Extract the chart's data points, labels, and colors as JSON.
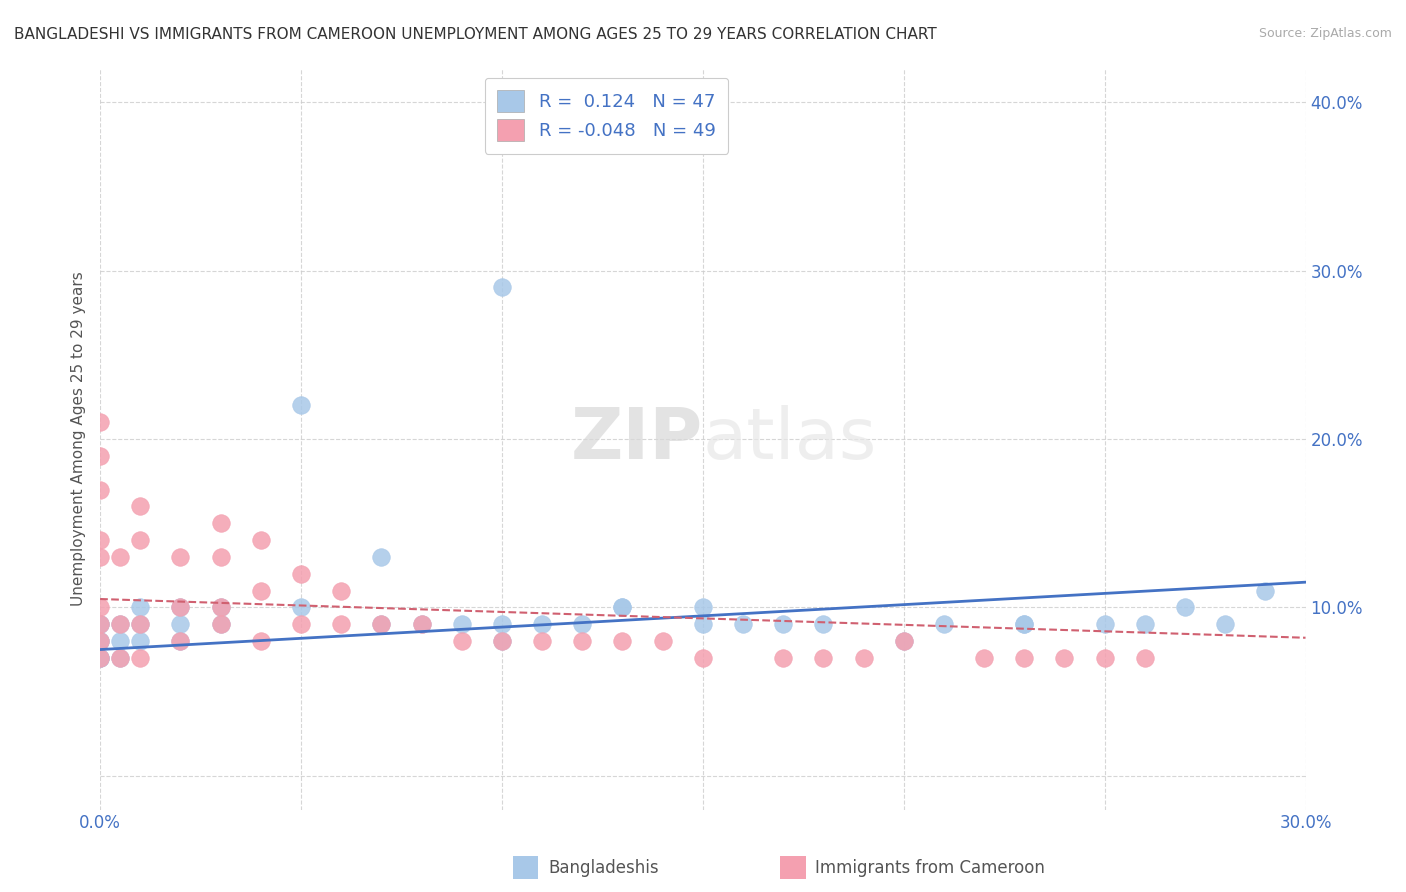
{
  "title": "BANGLADESHI VS IMMIGRANTS FROM CAMEROON UNEMPLOYMENT AMONG AGES 25 TO 29 YEARS CORRELATION CHART",
  "source": "Source: ZipAtlas.com",
  "ylabel": "Unemployment Among Ages 25 to 29 years",
  "xlim": [
    0.0,
    0.3
  ],
  "ylim": [
    -0.02,
    0.42
  ],
  "y_ticks": [
    0.0,
    0.1,
    0.2,
    0.3,
    0.4
  ],
  "y_tick_labels": [
    "",
    "10.0%",
    "20.0%",
    "30.0%",
    "40.0%"
  ],
  "x_ticks": [
    0.0,
    0.05,
    0.1,
    0.15,
    0.2,
    0.25,
    0.3
  ],
  "x_tick_labels": [
    "0.0%",
    "",
    "",
    "",
    "",
    "",
    "30.0%"
  ],
  "grid_color": "#cccccc",
  "background_color": "#ffffff",
  "blue_color": "#a8c8e8",
  "pink_color": "#f4a0b0",
  "blue_line_color": "#4472c4",
  "pink_line_color": "#d06070",
  "bangladeshi_x": [
    0.0,
    0.0,
    0.0,
    0.0,
    0.0,
    0.0,
    0.0,
    0.005,
    0.005,
    0.005,
    0.01,
    0.01,
    0.01,
    0.02,
    0.02,
    0.02,
    0.03,
    0.03,
    0.05,
    0.05,
    0.07,
    0.07,
    0.08,
    0.09,
    0.1,
    0.1,
    0.1,
    0.11,
    0.12,
    0.13,
    0.13,
    0.15,
    0.15,
    0.16,
    0.17,
    0.18,
    0.2,
    0.21,
    0.23,
    0.23,
    0.25,
    0.26,
    0.27,
    0.28,
    0.29
  ],
  "bangladeshi_y": [
    0.07,
    0.07,
    0.07,
    0.08,
    0.08,
    0.09,
    0.09,
    0.07,
    0.08,
    0.09,
    0.08,
    0.09,
    0.1,
    0.08,
    0.09,
    0.1,
    0.09,
    0.1,
    0.22,
    0.1,
    0.09,
    0.13,
    0.09,
    0.09,
    0.08,
    0.09,
    0.29,
    0.09,
    0.09,
    0.1,
    0.1,
    0.09,
    0.1,
    0.09,
    0.09,
    0.09,
    0.08,
    0.09,
    0.09,
    0.09,
    0.09,
    0.09,
    0.1,
    0.09,
    0.11
  ],
  "cameroon_x": [
    0.0,
    0.0,
    0.0,
    0.0,
    0.0,
    0.0,
    0.0,
    0.0,
    0.0,
    0.005,
    0.005,
    0.005,
    0.01,
    0.01,
    0.01,
    0.01,
    0.02,
    0.02,
    0.02,
    0.03,
    0.03,
    0.03,
    0.03,
    0.04,
    0.04,
    0.04,
    0.05,
    0.05,
    0.06,
    0.06,
    0.07,
    0.08,
    0.09,
    0.1,
    0.11,
    0.12,
    0.13,
    0.14,
    0.15,
    0.17,
    0.18,
    0.19,
    0.2,
    0.22,
    0.23,
    0.24,
    0.25,
    0.26
  ],
  "cameroon_y": [
    0.07,
    0.08,
    0.09,
    0.1,
    0.13,
    0.14,
    0.17,
    0.19,
    0.21,
    0.07,
    0.09,
    0.13,
    0.07,
    0.09,
    0.14,
    0.16,
    0.08,
    0.1,
    0.13,
    0.09,
    0.1,
    0.13,
    0.15,
    0.08,
    0.11,
    0.14,
    0.09,
    0.12,
    0.09,
    0.11,
    0.09,
    0.09,
    0.08,
    0.08,
    0.08,
    0.08,
    0.08,
    0.08,
    0.07,
    0.07,
    0.07,
    0.07,
    0.08,
    0.07,
    0.07,
    0.07,
    0.07,
    0.07
  ]
}
